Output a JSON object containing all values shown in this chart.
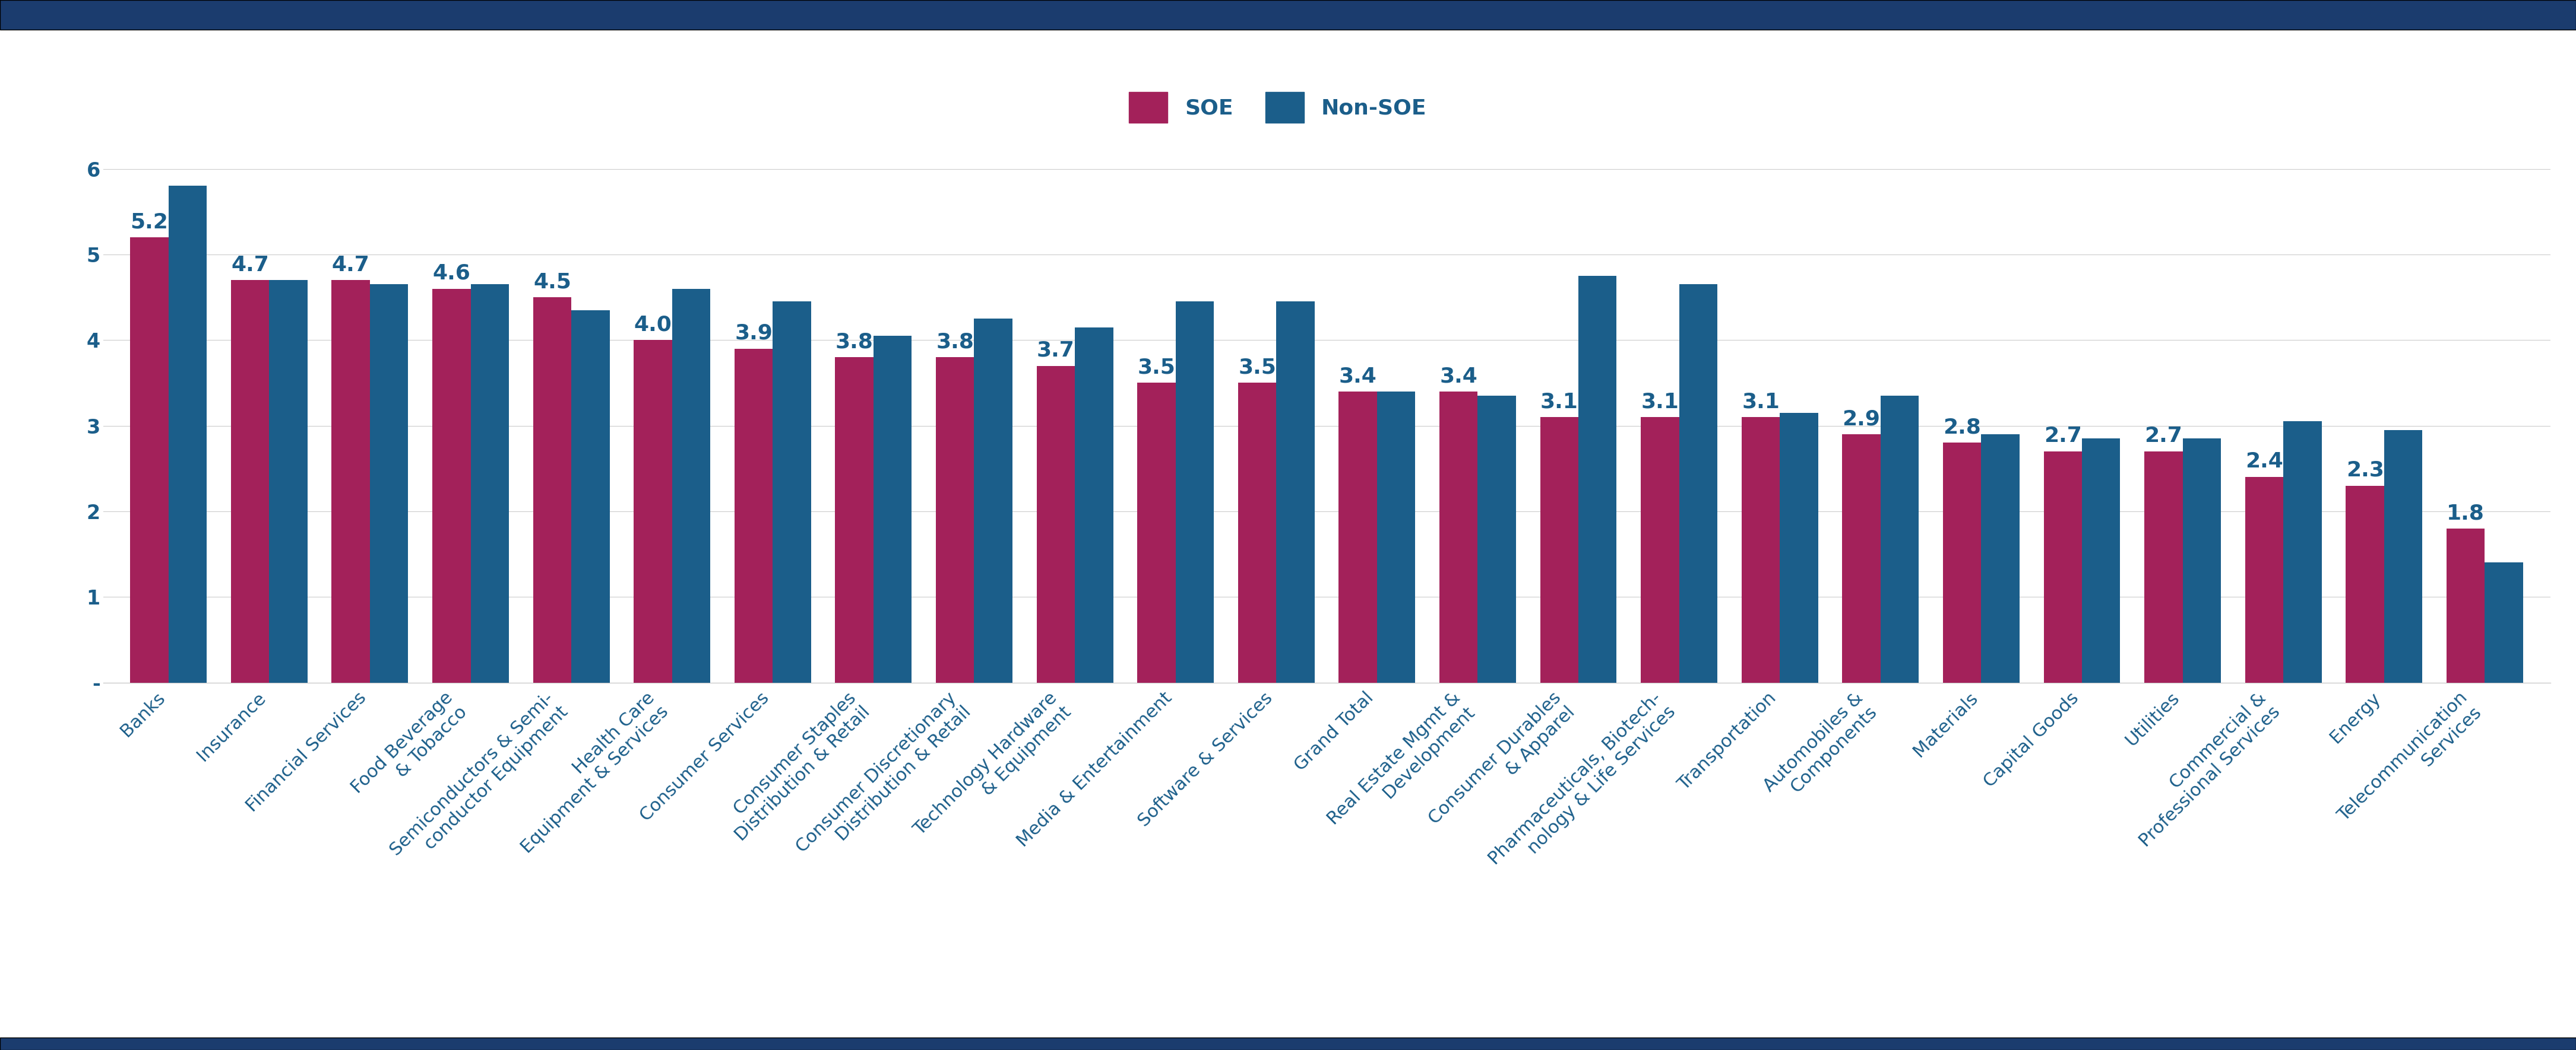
{
  "categories": [
    "Banks",
    "Insurance",
    "Financial Services",
    "Food Beverage\n& Tobacco",
    "Semiconductors & Semi-\nconductor Equipment",
    "Health Care\nEquipment & Services",
    "Consumer Services",
    "Consumer Staples\nDistribution & Retail",
    "Consumer Discretionary\nDistribution & Retail",
    "Technology Hardware\n& Equipment",
    "Media & Entertainment",
    "Software & Services",
    "Grand Total",
    "Real Estate Mgmt &\nDevelopment",
    "Consumer Durables\n& Apparel",
    "Pharmaceuticals, Biotech-\nnology & Life Services",
    "Transportation",
    "Automobiles &\nComponents",
    "Materials",
    "Capital Goods",
    "Utilities",
    "Commercial &\nProfessional Services",
    "Energy",
    "Telecommunication\nServices"
  ],
  "soe_values": [
    5.2,
    4.7,
    4.7,
    4.6,
    4.5,
    4.0,
    3.9,
    3.8,
    3.8,
    3.7,
    3.5,
    3.5,
    3.4,
    3.4,
    3.1,
    3.1,
    3.1,
    2.9,
    2.8,
    2.7,
    2.7,
    2.4,
    2.3,
    1.8
  ],
  "nonsoe_values": [
    5.8,
    4.7,
    4.65,
    4.65,
    4.35,
    4.6,
    4.45,
    4.05,
    4.25,
    4.15,
    4.45,
    4.45,
    3.4,
    3.35,
    4.75,
    4.65,
    3.15,
    3.35,
    2.9,
    2.85,
    2.85,
    3.05,
    2.95,
    1.4
  ],
  "soe_color": "#a3215a",
  "nonsoe_color": "#1b5e8a",
  "bar_width": 0.38,
  "ylim": [
    0,
    6.5
  ],
  "yticks": [
    0,
    1,
    2,
    3,
    4,
    5,
    6
  ],
  "ytick_labels": [
    "-",
    "1",
    "2",
    "3",
    "4",
    "5",
    "6"
  ],
  "top_bar_color": "#1b3c6e",
  "bottom_bar_color": "#1b3c6e",
  "legend_soe": "SOE",
  "legend_nonsoe": "Non-SOE",
  "label_fontsize": 22,
  "tick_fontsize": 24,
  "value_fontsize": 26
}
